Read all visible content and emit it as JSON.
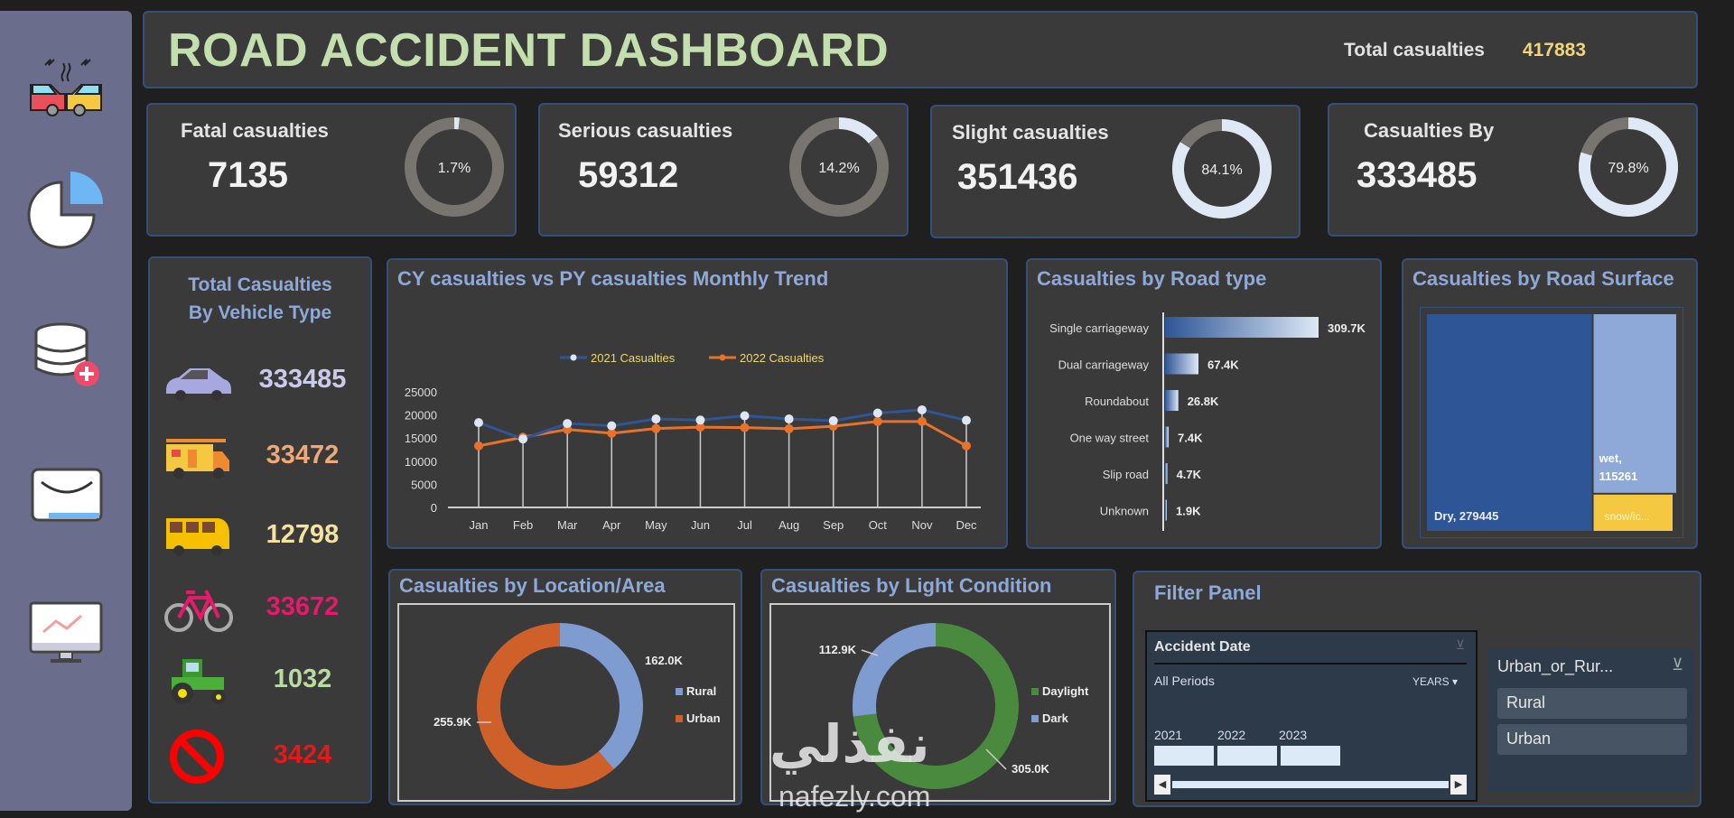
{
  "header": {
    "title": "ROAD ACCIDENT DASHBOARD",
    "total_label": "Total casualties",
    "total_value": "417883"
  },
  "sidebar": {
    "items": [
      {
        "icon": "car-crash-icon"
      },
      {
        "icon": "pie-chart-icon"
      },
      {
        "icon": "database-add-icon"
      },
      {
        "icon": "mail-icon"
      },
      {
        "icon": "monitor-chart-icon"
      }
    ]
  },
  "kpis": [
    {
      "label": "Fatal casualties",
      "value": "7135",
      "pct_label": "1.7%",
      "pct": 1.7
    },
    {
      "label": "Serious casualties",
      "value": "59312",
      "pct_label": "14.2%",
      "pct": 14.2
    },
    {
      "label": "Slight casualties",
      "value": "351436",
      "pct_label": "84.1%",
      "pct": 84.1
    },
    {
      "label": "Casualties By",
      "value": "333485",
      "pct_label": "79.8%",
      "pct": 79.8
    }
  ],
  "vehicles": {
    "title_line1": "Total Casualties",
    "title_line2": "By Vehicle Type",
    "items": [
      {
        "icon": "car-icon",
        "value": "333485",
        "color": "#c9cbe8"
      },
      {
        "icon": "van-icon",
        "value": "33472",
        "color": "#f0a877"
      },
      {
        "icon": "bus-icon",
        "value": "12798",
        "color": "#f4e2a0"
      },
      {
        "icon": "bicycle-icon",
        "value": "33672",
        "color": "#e8196a"
      },
      {
        "icon": "tractor-icon",
        "value": "1032",
        "color": "#b8dca0"
      },
      {
        "icon": "other-prohibited-icon",
        "value": "3424",
        "color": "#e81818"
      }
    ]
  },
  "chart_data": [
    {
      "type": "line",
      "title": "CY casualties vs PY casualties Monthly Trend",
      "categories": [
        "Jan",
        "Feb",
        "Mar",
        "Apr",
        "May",
        "Jun",
        "Jul",
        "Aug",
        "Sep",
        "Oct",
        "Nov",
        "Dec"
      ],
      "series": [
        {
          "name": "2021 Casualties",
          "color": "#2e5596",
          "marker": "#dce6f4",
          "values": [
            18340,
            14800,
            18150,
            17650,
            19130,
            18890,
            19820,
            19130,
            18740,
            20410,
            21100,
            18840
          ]
        },
        {
          "name": "2022 Casualties",
          "color": "#e8722a",
          "marker": "#e8722a",
          "values": [
            13310,
            15190,
            16860,
            16030,
            17060,
            17360,
            17260,
            17010,
            17550,
            18590,
            18590,
            13310
          ]
        }
      ],
      "yticks": [
        "0",
        "5000",
        "10000",
        "15000",
        "20000",
        "25000"
      ],
      "ylim": [
        0,
        25000
      ],
      "legend": "top",
      "grid": false
    },
    {
      "type": "bar",
      "orientation": "horizontal",
      "title": "Casualties by Road type",
      "categories": [
        "Single carriageway",
        "Dual carriageway",
        "Roundabout",
        "One way street",
        "Slip road",
        "Unknown"
      ],
      "values": [
        309700,
        67400,
        26800,
        7400,
        4700,
        1900
      ],
      "labels": [
        "309.7K",
        "67.4K",
        "26.8K",
        "7.4K",
        "4.7K",
        "1.9K"
      ]
    },
    {
      "type": "treemap",
      "title": "Casualties by Road Surface",
      "items": [
        {
          "name": "Dry",
          "value": 279445,
          "label": "Dry, 279445",
          "color": "#2e5596"
        },
        {
          "name": "wet",
          "value": 115261,
          "label_line1": "wet,",
          "label_line2": "115261",
          "color": "#8ea8d8"
        },
        {
          "name": "snow/ice",
          "value": 23177,
          "label": "snow/ic...",
          "color": "#f5c842"
        }
      ]
    },
    {
      "type": "pie",
      "donut": true,
      "title": "Casualties by Location/Area",
      "categories": [
        "Rural",
        "Urban"
      ],
      "values": [
        162000,
        255900
      ],
      "labels": [
        "162.0K",
        "255.9K"
      ],
      "colors": [
        "#7f9cd0",
        "#d0602a"
      ],
      "legend": "right"
    },
    {
      "type": "pie",
      "donut": true,
      "title": "Casualties by Light Condition",
      "categories": [
        "Daylight",
        "Dark"
      ],
      "values": [
        305000,
        112900
      ],
      "labels": [
        "305.0K",
        "112.9K"
      ],
      "colors": [
        "#4a8a3e",
        "#7f9cd0"
      ],
      "legend": "right"
    }
  ],
  "filter": {
    "title": "Filter Panel",
    "date_slicer": {
      "title": "Accident Date",
      "period": "All Periods",
      "level": "YEARS",
      "years": [
        "2021",
        "2022",
        "2023"
      ]
    },
    "area_slicer": {
      "title": "Urban_or_Rur...",
      "items": [
        "Rural",
        "Urban"
      ]
    }
  },
  "watermark": {
    "arabic": "نفذلي",
    "latin": "nafezly.com"
  }
}
